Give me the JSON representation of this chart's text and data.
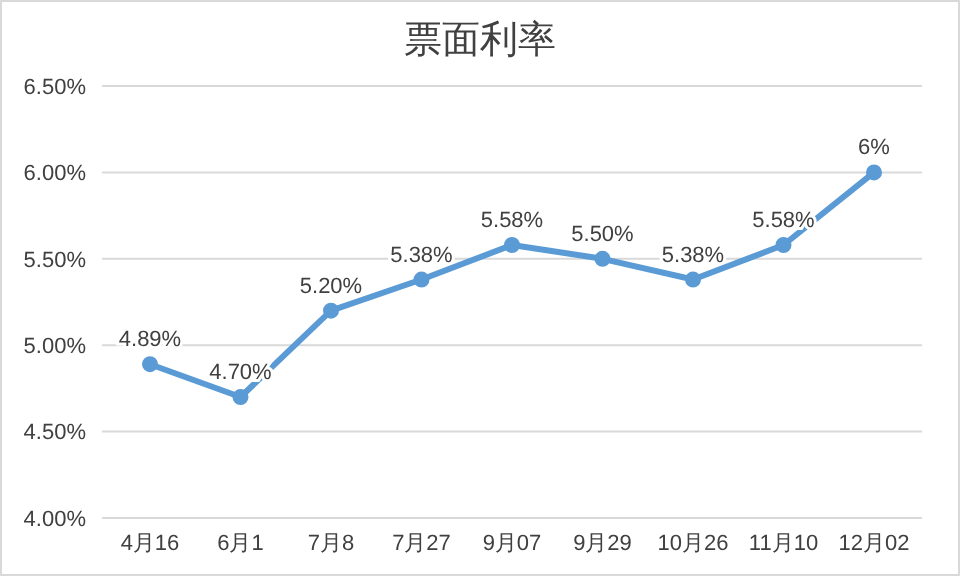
{
  "chart_data": {
    "type": "line",
    "title": "票面利率",
    "categories": [
      "4月16",
      "6月1",
      "7月8",
      "7月27",
      "9月07",
      "9月29",
      "10月26",
      "11月10",
      "12月02"
    ],
    "series": [
      {
        "color": "#5b9bd5",
        "values": [
          4.89,
          4.7,
          5.2,
          5.38,
          5.58,
          5.5,
          5.38,
          5.58,
          6
        ],
        "value_labels": [
          "4.89%",
          "4.70%",
          "5.20%",
          "5.38%",
          "5.58%",
          "5.50%",
          "5.38%",
          "5.58%",
          "6%"
        ]
      }
    ],
    "ylim": [
      4,
      6.5
    ],
    "yticks": [
      {
        "value": 4,
        "label": "4.00%"
      },
      {
        "value": 4.5,
        "label": "4.50%"
      },
      {
        "value": 5,
        "label": "5.00%"
      },
      {
        "value": 5.5,
        "label": "5.50%"
      },
      {
        "value": 6,
        "label": "6.00%"
      },
      {
        "value": 6.5,
        "label": "6.50%"
      }
    ],
    "grid": "y",
    "marker": "circle",
    "line_style": "solid"
  }
}
